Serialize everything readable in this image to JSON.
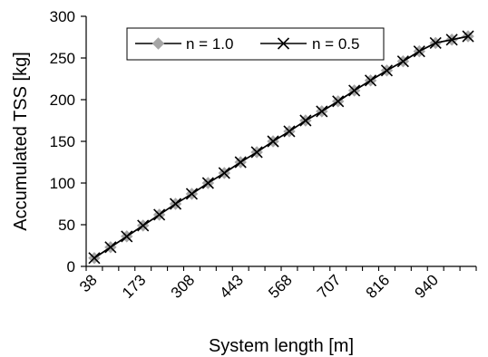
{
  "chart_data": {
    "type": "line",
    "title": "",
    "xlabel": "System length [m]",
    "ylabel": "Accumulated TSS [kg]",
    "ylim": [
      0,
      300
    ],
    "yticks": [
      0,
      50,
      100,
      150,
      200,
      250,
      300
    ],
    "xtick_labels": [
      "38",
      "173",
      "308",
      "443",
      "568",
      "707",
      "816",
      "940"
    ],
    "grid": false,
    "legend_position": "top-left",
    "x": [
      "38",
      "83",
      "128",
      "173",
      "218",
      "263",
      "308",
      "353",
      "398",
      "443",
      "485",
      "527",
      "568",
      "614",
      "661",
      "707",
      "743",
      "780",
      "816",
      "857",
      "898",
      "940",
      "983",
      "1027"
    ],
    "series": [
      {
        "name": "n = 1.0",
        "color": "#a6a6a6",
        "marker": "diamond",
        "values": [
          10,
          23,
          36,
          49,
          62,
          75,
          87,
          100,
          112,
          125,
          137,
          150,
          162,
          175,
          186,
          198,
          211,
          223,
          235,
          246,
          258,
          268,
          272,
          276
        ]
      },
      {
        "name": "n = 0.5",
        "color": "#000000",
        "marker": "x",
        "values": [
          10,
          23,
          36,
          49,
          62,
          75,
          87,
          100,
          112,
          125,
          137,
          150,
          162,
          175,
          186,
          198,
          211,
          223,
          235,
          246,
          258,
          268,
          272,
          276
        ]
      }
    ]
  }
}
